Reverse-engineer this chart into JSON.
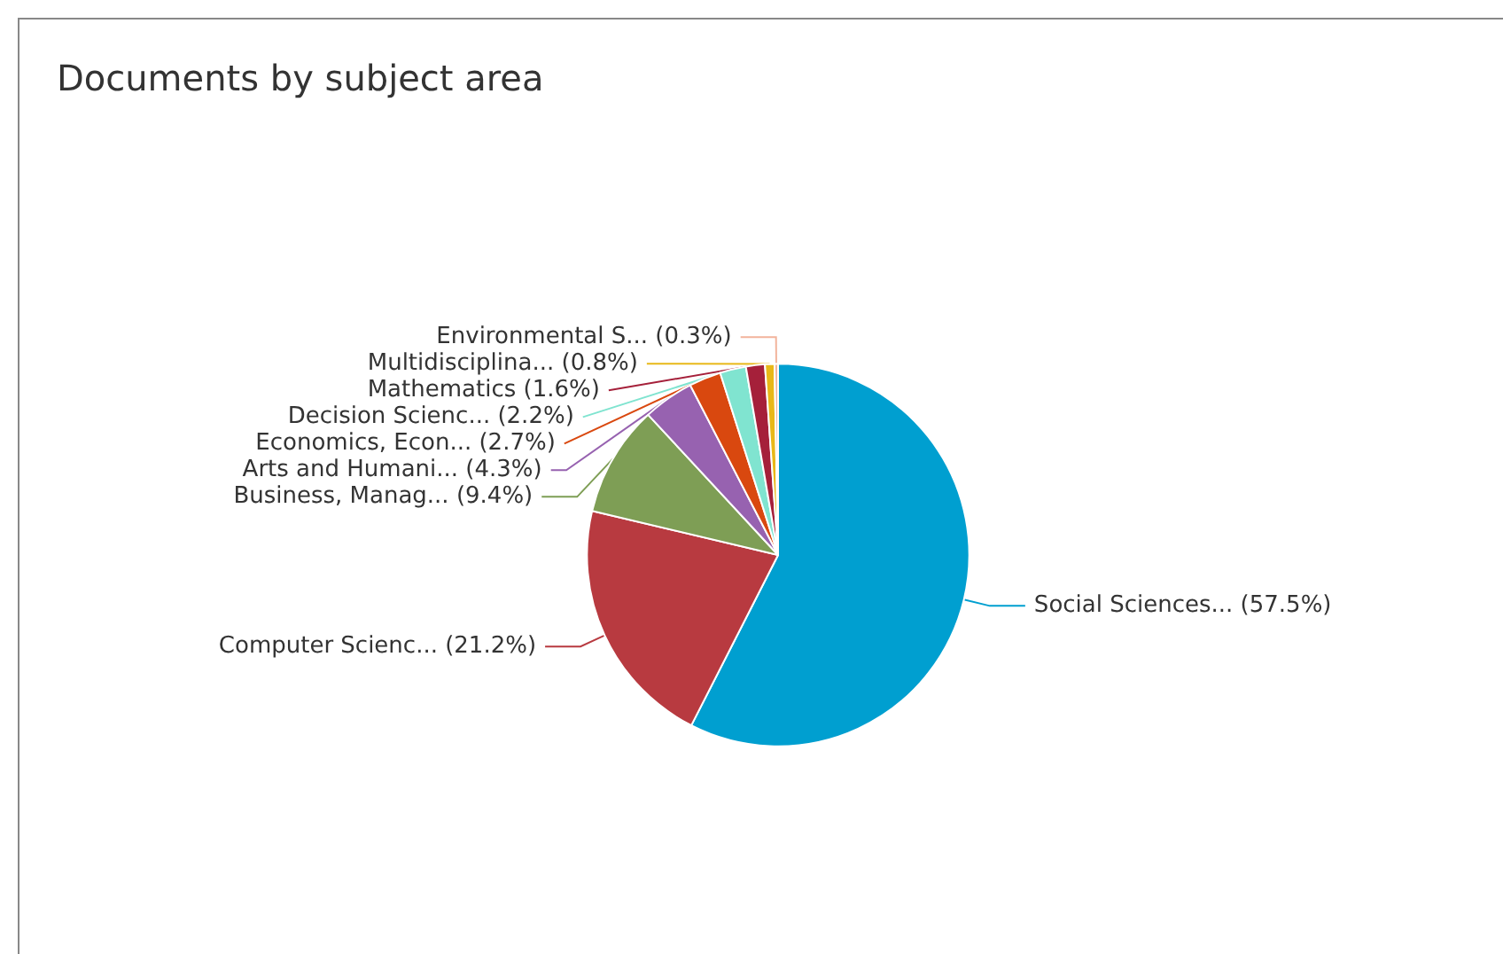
{
  "chart_data": {
    "type": "pie",
    "title": "Documents by subject area",
    "categories": [
      "Social Sciences...",
      "Computer Scienc...",
      "Business, Manag...",
      "Arts and Humani...",
      "Economics, Econ...",
      "Decision Scienc...",
      "Mathematics",
      "Multidisciplina...",
      "Environmental S..."
    ],
    "values": [
      57.5,
      21.2,
      9.4,
      4.3,
      2.7,
      2.2,
      1.6,
      0.8,
      0.3
    ],
    "value_labels": [
      "(57.5%)",
      "(21.2%)",
      "(9.4%)",
      "(4.3%)",
      "(2.7%)",
      "(2.2%)",
      "(1.6%)",
      "(0.8%)",
      "(0.3%)"
    ],
    "colors": [
      "#009fd0",
      "#b83a40",
      "#7e9e55",
      "#9762b0",
      "#d9480f",
      "#80e4d0",
      "#a5203a",
      "#e8b818",
      "#f2b49c"
    ],
    "legend": false
  }
}
